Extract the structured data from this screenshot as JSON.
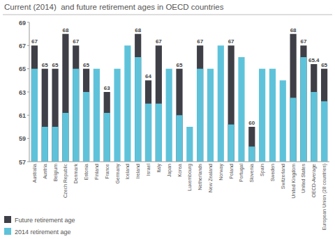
{
  "chart_data": {
    "type": "bar",
    "title": "Current (2014)  and future retirement ages in OECD countries",
    "categories": [
      "Australia",
      "Austria",
      "Belgium",
      "Czech Republic",
      "Denmark",
      "Estonia",
      "Finland",
      "France",
      "Germany",
      "Iceland",
      "Ireland",
      "Israel",
      "Italy",
      "Japan",
      "Korea",
      "Luxembourg",
      "Netherlands",
      "New Zealand",
      "Norway",
      "Poland",
      "Portugal",
      "Slovenia",
      "Spain",
      "Sweden",
      "Switzerland",
      "United Kingdom",
      "United States",
      "OECD-Average",
      "European Union (28 countries)"
    ],
    "series": [
      {
        "name": "Future retirement age",
        "color": "#3f3f48",
        "data_labels": true,
        "values": [
          67,
          65,
          65,
          68,
          67,
          65,
          null,
          63,
          null,
          null,
          68,
          64,
          67,
          null,
          65,
          null,
          67,
          null,
          null,
          67,
          null,
          60,
          null,
          null,
          null,
          68,
          67,
          65.4,
          65
        ]
      },
      {
        "name": "2014 retirement age",
        "color": "#5ec3da",
        "values": [
          65,
          60,
          60,
          61.2,
          65,
          63,
          65,
          61.2,
          65,
          67,
          66,
          62,
          62,
          65,
          61,
          60,
          65,
          65,
          67,
          60.2,
          66,
          58.3,
          65,
          65,
          64,
          62.5,
          66,
          63,
          62.2
        ]
      }
    ],
    "stacked": false,
    "ylim": [
      57,
      69
    ],
    "yticks": [
      57,
      59,
      61,
      63,
      65,
      67,
      69
    ],
    "grid": false,
    "legend": "bottom-left"
  }
}
